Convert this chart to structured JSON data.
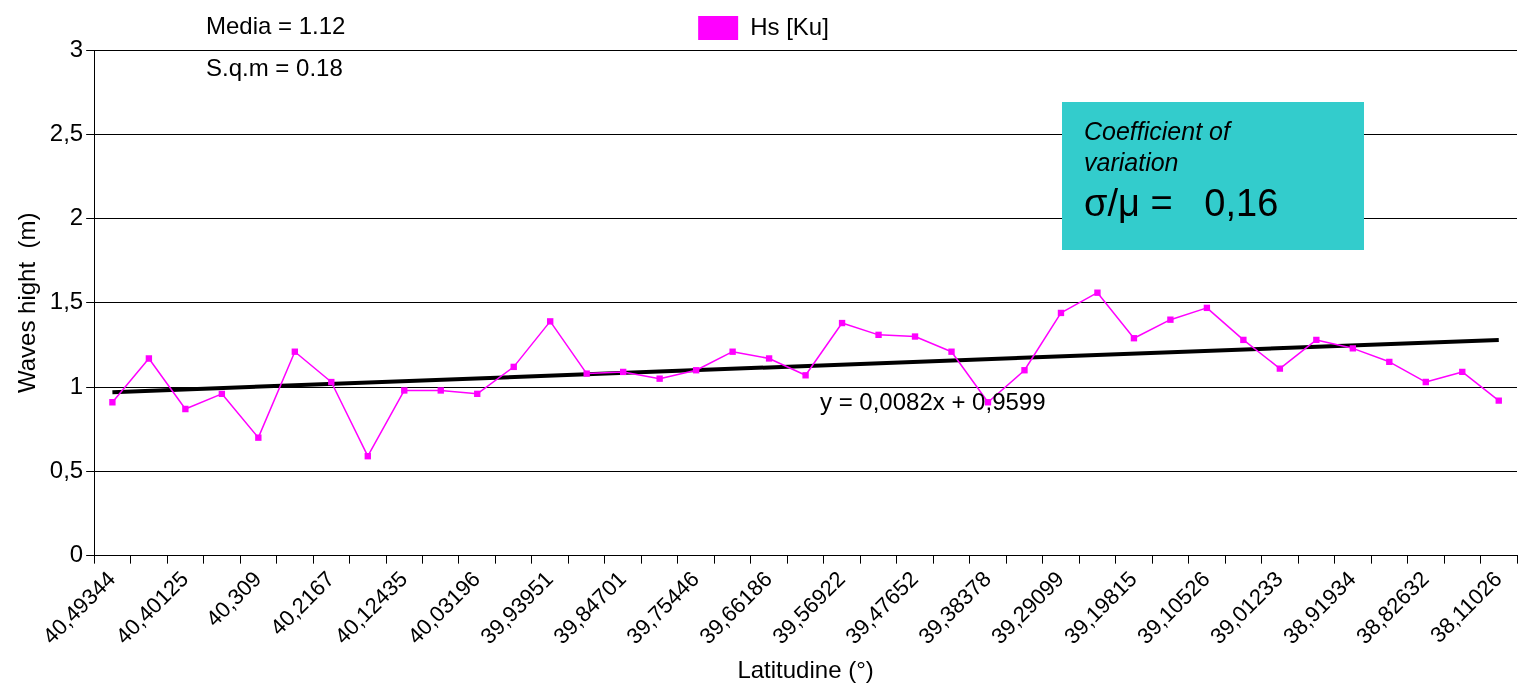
{
  "chart_data": {
    "type": "line",
    "categories": [
      "40,49344",
      null,
      "40,40125",
      null,
      "40,309",
      null,
      "40,2167",
      null,
      "40,12435",
      null,
      "40,03196",
      null,
      "39,93951",
      null,
      "39,84701",
      null,
      "39,75446",
      null,
      "39,66186",
      null,
      "39,56922",
      null,
      "39,47652",
      null,
      "39,38378",
      null,
      "39,29099",
      null,
      "39,19815",
      null,
      "39,10526",
      null,
      "39,01233",
      null,
      "38,91934",
      null,
      "38,82632",
      null,
      "38,11026"
    ],
    "series": [
      {
        "name": "Hs [Ku]",
        "color": "#ff00ff",
        "marker": "square",
        "values": [
          0.91,
          1.17,
          0.87,
          0.96,
          0.7,
          1.21,
          1.03,
          0.59,
          0.98,
          0.98,
          0.96,
          1.12,
          1.39,
          1.08,
          1.09,
          1.05,
          1.1,
          1.21,
          1.17,
          1.07,
          1.38,
          1.31,
          1.3,
          1.21,
          0.91,
          1.1,
          1.44,
          1.56,
          1.29,
          1.4,
          1.47,
          1.28,
          1.11,
          1.28,
          1.23,
          1.15,
          1.03,
          1.09,
          0.92
        ]
      },
      {
        "type": "line",
        "color": "#000000",
        "marker": "none",
        "values": [
          0.97,
          null,
          null,
          null,
          null,
          null,
          null,
          null,
          null,
          null,
          null,
          null,
          null,
          null,
          null,
          null,
          null,
          null,
          null,
          null,
          null,
          null,
          null,
          null,
          null,
          null,
          null,
          null,
          null,
          null,
          null,
          null,
          null,
          null,
          null,
          null,
          null,
          null,
          1.28
        ]
      }
    ],
    "xlabel": "Latitudine (°)",
    "ylabel": "Waves hight  (m)",
    "ylim": [
      0,
      3
    ],
    "yticks": [
      0,
      {
        "value": 0.5,
        "label": "0,5"
      },
      1,
      {
        "value": 1.5,
        "label": "1,5"
      },
      2,
      {
        "value": 2.5,
        "label": "2,5"
      },
      3
    ],
    "grid": "y",
    "legend": "top",
    "annotations": [
      "Media = 1.12",
      "S.q.m = 0.18",
      "Coefficient of variation",
      "σ/μ =   0,16",
      "y = 0,0082x + 0,9599"
    ]
  }
}
